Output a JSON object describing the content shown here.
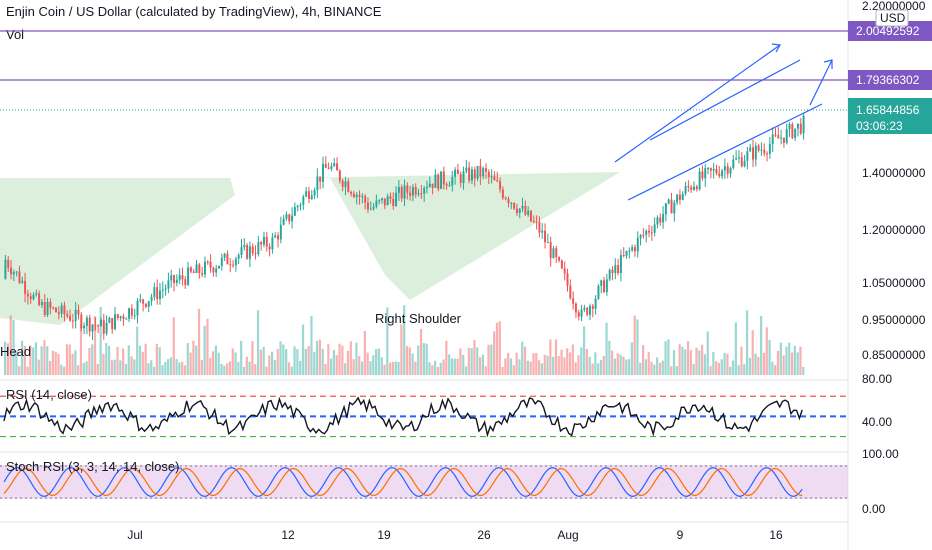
{
  "chart_data": {
    "type": "candlestick",
    "title": "Enjin Coin / US Dollar (calculated by TradingView), 4h, BINANCE",
    "volume_label": "Vol",
    "currency": "USD",
    "price_axis_ticks": [
      "2.20000000",
      "1.40000000",
      "1.20000000",
      "1.05000000",
      "0.95000000",
      "0.85000000"
    ],
    "x_ticks": [
      "Jul",
      "12",
      "19",
      "26",
      "Aug",
      "9",
      "16"
    ],
    "horizontal_levels": [
      {
        "label": "2.00492592",
        "color": "#7e57c2"
      },
      {
        "label": "1.79366302",
        "color": "#7e57c2"
      }
    ],
    "last_price": {
      "label": "1.65844856",
      "countdown": "03:06:23",
      "color": "#26a69a"
    },
    "annotations": [
      "Head",
      "Right Shoulder"
    ],
    "candles_seed": {
      "start": 1.06,
      "end": 1.658,
      "count": 285
    },
    "rsi": {
      "label": "RSI (14, close)",
      "ticks": [
        "80.00",
        "40.00"
      ],
      "upper": 70,
      "middle": 50,
      "lower": 30
    },
    "stoch_rsi": {
      "label": "Stoch RSI (3, 3, 14, 14, close)",
      "ticks": [
        "100.00",
        "0.00"
      ],
      "upper": 80,
      "lower": 20
    },
    "colors": {
      "up": "#26a69a",
      "down": "#ef5350",
      "pattern_fill": "#c8e6c9",
      "trend_line": "#2962ff",
      "band_fill": "#e1bee7"
    }
  }
}
